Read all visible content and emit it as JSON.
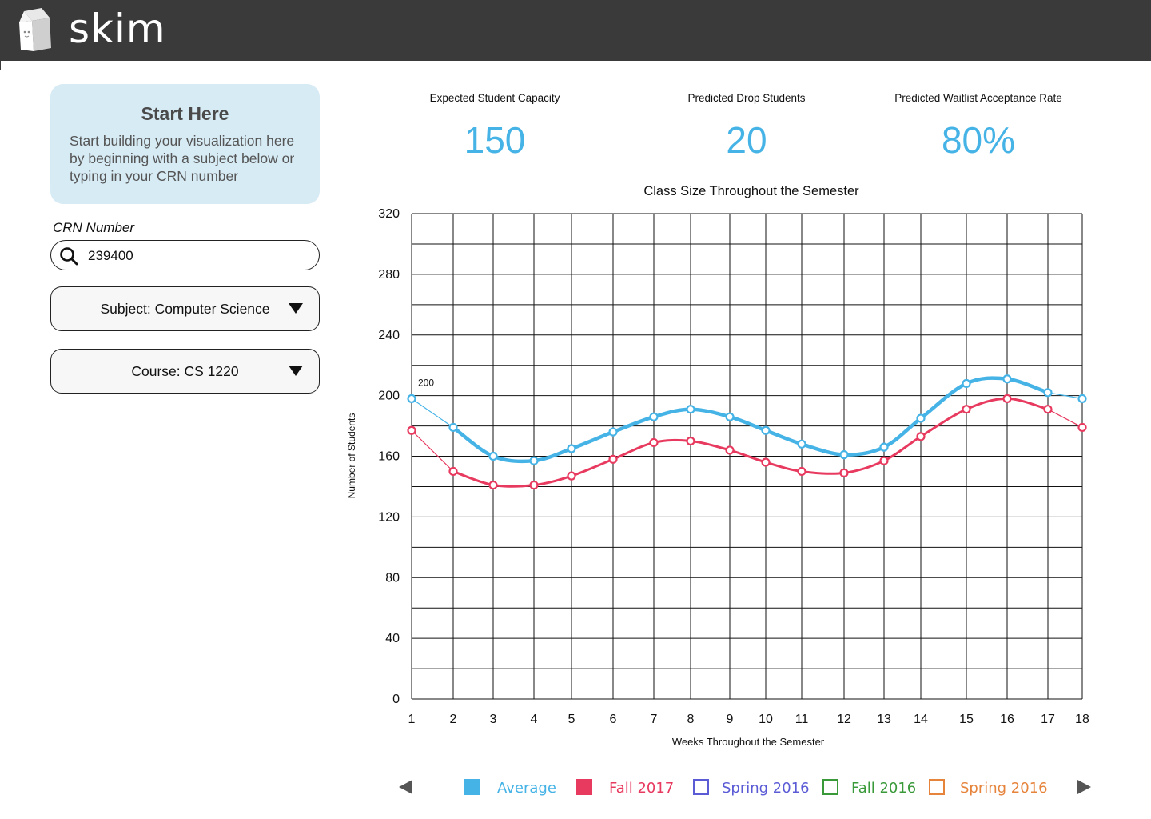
{
  "app": {
    "logo_text": "skim"
  },
  "sidebar": {
    "start_title": "Start Here",
    "start_body": "Start building your visualization here by beginning with a subject below or typing in your CRN number",
    "crn_label": "CRN Number",
    "crn_value": "239400",
    "subject_label": "Subject: Computer Science",
    "course_label": "Course: CS 1220"
  },
  "stats": [
    {
      "label": "Expected Student Capacity",
      "value": "150"
    },
    {
      "label": "Predicted Drop Students",
      "value": "20"
    },
    {
      "label": "Predicted Waitlist Acceptance Rate",
      "value": "80%"
    }
  ],
  "colors": {
    "accent": "#45b3e6",
    "average": "#45b3e6",
    "fall2017": "#e8395f",
    "spring2016_blue": "#5b5bd6",
    "fall2016": "#3a9a3a",
    "spring2016_orange": "#e6843c"
  },
  "legend": [
    {
      "label": "Average",
      "color": "#45b3e6",
      "filled": true
    },
    {
      "label": "Fall 2017",
      "color": "#e8395f",
      "filled": true
    },
    {
      "label": "Spring 2016",
      "color": "#5b5bd6",
      "filled": false
    },
    {
      "label": "Fall 2016",
      "color": "#3a9a3a",
      "filled": false
    },
    {
      "label": "Spring 2016",
      "color": "#e6843c",
      "filled": false
    }
  ],
  "chart_data": {
    "type": "line",
    "title": "Class Size Throughout the Semester",
    "xlabel": "Weeks Throughout the Semester",
    "ylabel": "Number of Students",
    "x": [
      1,
      2,
      3,
      4,
      5,
      6,
      7,
      8,
      9,
      10,
      11,
      12,
      13,
      14,
      15,
      16,
      17,
      18
    ],
    "ylim": [
      0,
      320
    ],
    "yticks": [
      0,
      40,
      80,
      120,
      160,
      200,
      240,
      280,
      320
    ],
    "grid": true,
    "annotations": [
      {
        "x": 1,
        "y": 200,
        "text": "200"
      }
    ],
    "series": [
      {
        "name": "Average",
        "color": "#45b3e6",
        "values": [
          198,
          179,
          160,
          157,
          165,
          176,
          186,
          191,
          186,
          177,
          168,
          161,
          166,
          185,
          208,
          211,
          202,
          198
        ]
      },
      {
        "name": "Fall 2017",
        "color": "#e8395f",
        "values": [
          177,
          150,
          141,
          141,
          147,
          158,
          169,
          170,
          164,
          156,
          150,
          149,
          157,
          173,
          191,
          198,
          191,
          179
        ]
      }
    ]
  }
}
